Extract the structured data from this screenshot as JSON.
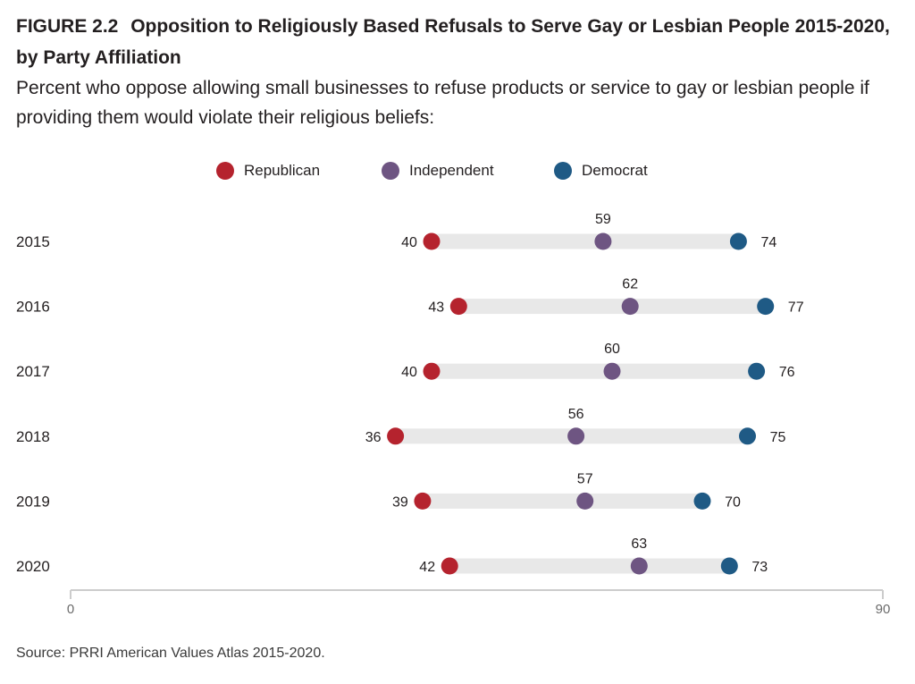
{
  "figure": {
    "number": "FIGURE 2.2",
    "title": "Opposition to Religiously Based Refusals to Serve Gay or Lesbian People 2015-2020, by Party Affiliation",
    "subtitle": "Percent who oppose allowing small businesses to refuse products or service to gay or lesbian people if providing them would violate their religious beliefs:",
    "source": "Source: PRRI American Values Atlas 2015-2020."
  },
  "colors": {
    "Republican": "#b5232e",
    "Independent": "#6e5582",
    "Democrat": "#1f5a85",
    "bar": "#e8e8e8",
    "axis": "#cccccc"
  },
  "chart_data": {
    "type": "dot",
    "categories": [
      "2015",
      "2016",
      "2017",
      "2018",
      "2019",
      "2020"
    ],
    "series": [
      {
        "name": "Republican",
        "values": [
          40,
          43,
          40,
          36,
          39,
          42
        ]
      },
      {
        "name": "Independent",
        "values": [
          59,
          62,
          60,
          56,
          57,
          63
        ]
      },
      {
        "name": "Democrat",
        "values": [
          74,
          77,
          76,
          75,
          70,
          73
        ]
      }
    ],
    "xlim": [
      0,
      90
    ],
    "x_ticks": [
      "0",
      "90"
    ],
    "legend_position": "top-center",
    "grid": false
  }
}
